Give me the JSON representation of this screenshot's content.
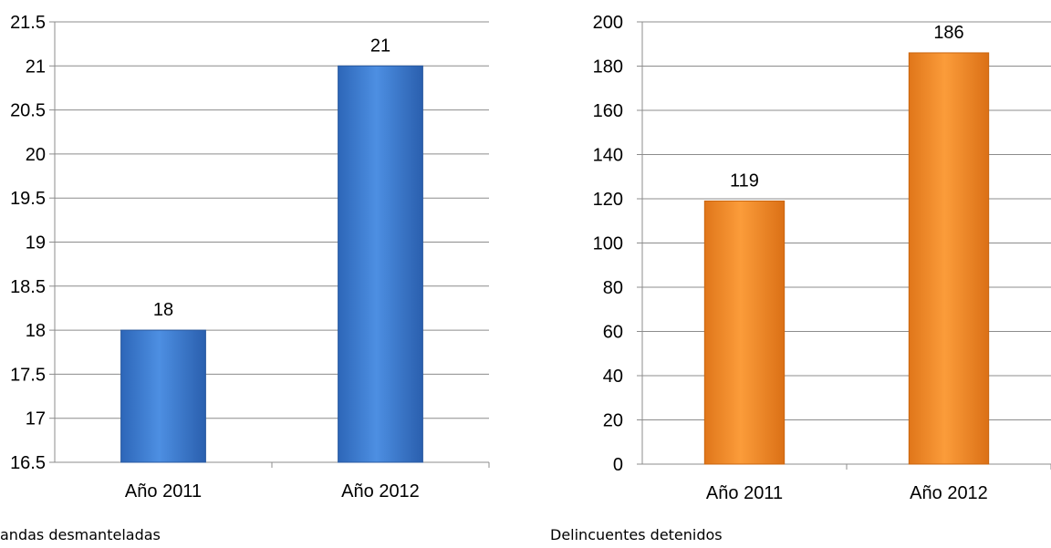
{
  "chart_data": [
    {
      "type": "bar",
      "categories": [
        "Año 2011",
        "Año 2012"
      ],
      "values": [
        18,
        21
      ],
      "data_labels": [
        "18",
        "21"
      ],
      "ylim": [
        16.5,
        21.5
      ],
      "yticks": [
        "16.5",
        "17",
        "17.5",
        "18",
        "18.5",
        "19",
        "19.5",
        "20",
        "20.5",
        "21",
        "21.5"
      ],
      "caption": "andas desmanteladas",
      "grid": true,
      "bar_color": "#4a86d8"
    },
    {
      "type": "bar",
      "categories": [
        "Año 2011",
        "Año 2012"
      ],
      "values": [
        119,
        186
      ],
      "data_labels": [
        "119",
        "186"
      ],
      "ylim": [
        0,
        200
      ],
      "yticks": [
        "0",
        "20",
        "40",
        "60",
        "80",
        "100",
        "120",
        "140",
        "160",
        "180",
        "200"
      ],
      "caption": "Delincuentes detenidos",
      "grid": true,
      "bar_color": "#f7922e"
    }
  ]
}
